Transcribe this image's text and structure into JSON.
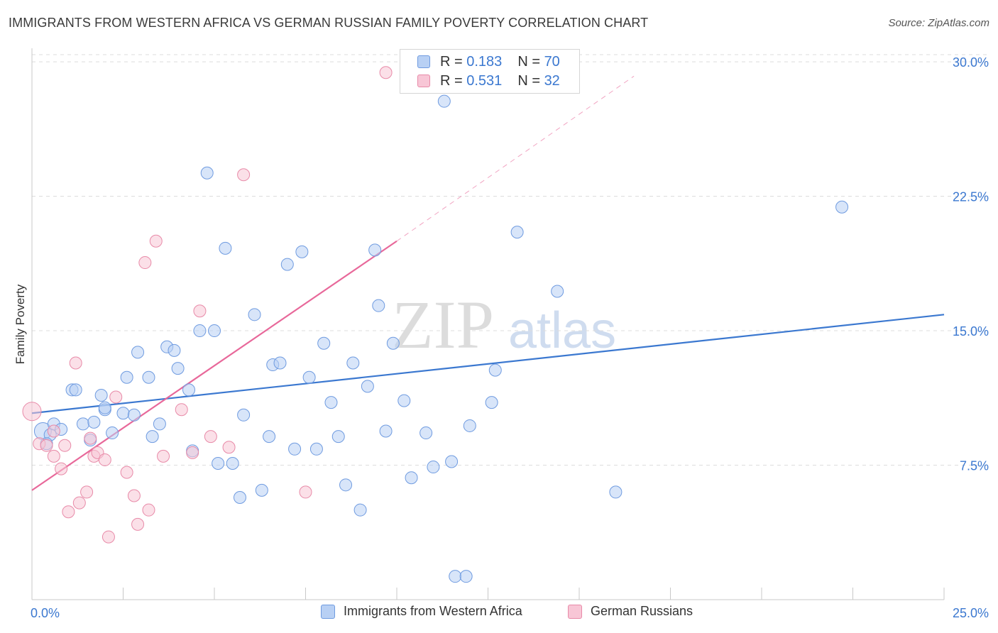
{
  "title": "IMMIGRANTS FROM WESTERN AFRICA VS GERMAN RUSSIAN FAMILY POVERTY CORRELATION CHART",
  "source": "Source: ZipAtlas.com",
  "watermark": {
    "zip": "ZIP",
    "atlas": "atlas"
  },
  "legend_top": {
    "r_label": "R =",
    "n_label": "N =",
    "rows": [
      {
        "r": "0.183",
        "n": "70",
        "color": "#b8d0f4",
        "border": "#6f9be0"
      },
      {
        "r": "0.531",
        "n": "32",
        "color": "#f8c6d6",
        "border": "#e88aa8"
      }
    ]
  },
  "legend_bottom": [
    {
      "label": "Immigrants from Western Africa",
      "color": "#b8d0f4",
      "border": "#6f9be0"
    },
    {
      "label": "German Russians",
      "color": "#f8c6d6",
      "border": "#e88aa8"
    }
  ],
  "chart_data": {
    "type": "scatter",
    "title": "IMMIGRANTS FROM WESTERN AFRICA VS GERMAN RUSSIAN FAMILY POVERTY CORRELATION CHART",
    "xlabel": "",
    "ylabel": "Family Poverty",
    "xlim": [
      0,
      25
    ],
    "ylim": [
      0,
      30.4
    ],
    "x_tick_labels": [
      {
        "v": 0,
        "label": "0.0%"
      },
      {
        "v": 25,
        "label": "25.0%"
      }
    ],
    "y_tick_labels": [
      {
        "v": 7.5,
        "label": "7.5%"
      },
      {
        "v": 15,
        "label": "15.0%"
      },
      {
        "v": 22.5,
        "label": "22.5%"
      },
      {
        "v": 30,
        "label": "30.0%"
      }
    ],
    "grid": true,
    "legend_position": "top-center",
    "series": [
      {
        "name": "Immigrants from Western Africa",
        "color": "#b8d0f4",
        "edge": "#6f9be0",
        "line_color": "#3b78d0",
        "trend": {
          "x0": 0,
          "y0": 10.4,
          "x1": 25,
          "y1": 15.9
        },
        "points": [
          [
            0.3,
            9.4
          ],
          [
            0.5,
            9.2
          ],
          [
            0.6,
            9.8
          ],
          [
            0.8,
            9.5
          ],
          [
            1.1,
            11.7
          ],
          [
            1.2,
            11.7
          ],
          [
            1.4,
            9.8
          ],
          [
            1.6,
            8.9
          ],
          [
            1.7,
            9.9
          ],
          [
            1.9,
            11.4
          ],
          [
            2.0,
            10.6
          ],
          [
            2.2,
            9.3
          ],
          [
            2.5,
            10.4
          ],
          [
            2.6,
            12.4
          ],
          [
            2.8,
            10.3
          ],
          [
            2.9,
            13.8
          ],
          [
            3.2,
            12.4
          ],
          [
            3.3,
            9.1
          ],
          [
            3.5,
            9.8
          ],
          [
            3.7,
            14.1
          ],
          [
            3.9,
            13.9
          ],
          [
            4.0,
            12.9
          ],
          [
            4.3,
            11.7
          ],
          [
            4.4,
            8.3
          ],
          [
            4.6,
            15.0
          ],
          [
            4.8,
            23.8
          ],
          [
            5.0,
            15.0
          ],
          [
            5.1,
            7.6
          ],
          [
            5.3,
            19.6
          ],
          [
            5.5,
            7.6
          ],
          [
            5.7,
            5.7
          ],
          [
            5.8,
            10.3
          ],
          [
            6.1,
            15.9
          ],
          [
            6.3,
            6.1
          ],
          [
            6.5,
            9.1
          ],
          [
            6.6,
            13.1
          ],
          [
            6.8,
            13.2
          ],
          [
            7.0,
            18.7
          ],
          [
            7.2,
            8.4
          ],
          [
            7.4,
            19.4
          ],
          [
            7.6,
            12.4
          ],
          [
            7.8,
            8.4
          ],
          [
            8.0,
            14.3
          ],
          [
            8.2,
            11.0
          ],
          [
            8.4,
            9.1
          ],
          [
            8.6,
            6.4
          ],
          [
            8.8,
            13.2
          ],
          [
            9.0,
            5.0
          ],
          [
            9.2,
            11.9
          ],
          [
            9.4,
            19.5
          ],
          [
            9.5,
            16.4
          ],
          [
            9.7,
            9.4
          ],
          [
            9.9,
            14.3
          ],
          [
            10.2,
            11.1
          ],
          [
            10.4,
            6.8
          ],
          [
            10.8,
            9.3
          ],
          [
            11.0,
            7.4
          ],
          [
            11.3,
            27.8
          ],
          [
            11.5,
            7.7
          ],
          [
            11.6,
            1.3
          ],
          [
            11.9,
            1.3
          ],
          [
            12.0,
            9.7
          ],
          [
            12.6,
            11.0
          ],
          [
            12.7,
            12.8
          ],
          [
            13.3,
            20.5
          ],
          [
            14.4,
            17.2
          ],
          [
            16.0,
            6.0
          ],
          [
            22.2,
            21.9
          ],
          [
            2.0,
            10.7
          ],
          [
            0.4,
            8.7
          ]
        ]
      },
      {
        "name": "German Russians",
        "color": "#f8c6d6",
        "edge": "#e88aa8",
        "line_color": "#e8689a",
        "trend": {
          "x0": 0,
          "y0": 6.1,
          "x1": 10.0,
          "y1": 20.0
        },
        "trend_dashed_to": {
          "x1": 16.5,
          "y1": 29.2
        },
        "points": [
          [
            0.0,
            10.5
          ],
          [
            0.2,
            8.7
          ],
          [
            0.4,
            8.6
          ],
          [
            0.6,
            9.4
          ],
          [
            0.6,
            8.0
          ],
          [
            0.8,
            7.3
          ],
          [
            0.9,
            8.6
          ],
          [
            1.0,
            4.9
          ],
          [
            1.2,
            13.2
          ],
          [
            1.3,
            5.4
          ],
          [
            1.5,
            6.0
          ],
          [
            1.6,
            9.0
          ],
          [
            1.7,
            8.0
          ],
          [
            1.8,
            8.2
          ],
          [
            2.0,
            7.8
          ],
          [
            2.1,
            3.5
          ],
          [
            2.3,
            11.3
          ],
          [
            2.6,
            7.1
          ],
          [
            2.8,
            5.8
          ],
          [
            2.9,
            4.2
          ],
          [
            3.1,
            18.8
          ],
          [
            3.2,
            5.0
          ],
          [
            3.4,
            20.0
          ],
          [
            3.6,
            8.0
          ],
          [
            4.1,
            10.6
          ],
          [
            4.4,
            8.2
          ],
          [
            4.6,
            16.1
          ],
          [
            4.9,
            9.1
          ],
          [
            5.4,
            8.5
          ],
          [
            5.8,
            23.7
          ],
          [
            7.5,
            6.0
          ],
          [
            9.7,
            29.4
          ]
        ]
      }
    ]
  }
}
